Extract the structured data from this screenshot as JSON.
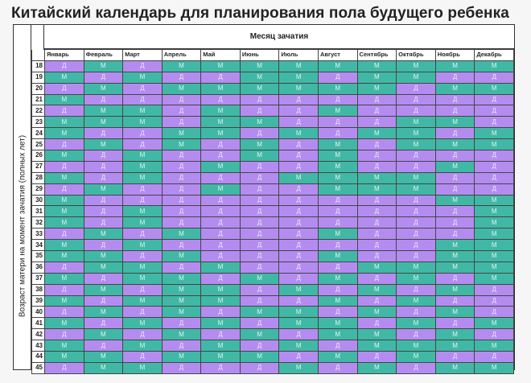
{
  "title": "Китайский календарь для планирования пола будущего ребенка",
  "header": "Месяц зачатия",
  "side_label": "Возраст матери на момент зачатия (полных лет)",
  "colors": {
    "M": "#41b8a6",
    "D": "#b48cf0"
  },
  "months": [
    "Январь",
    "Февраль",
    "Март",
    "Апрель",
    "Май",
    "Июнь",
    "Июль",
    "Август",
    "Сентябрь",
    "Октябрь",
    "Ноябрь",
    "Декабрь"
  ],
  "rows": [
    {
      "age": "18",
      "cells": [
        "Д",
        "М",
        "Д",
        "М",
        "М",
        "М",
        "М",
        "М",
        "М",
        "М",
        "М",
        "М"
      ]
    },
    {
      "age": "19",
      "cells": [
        "М",
        "Д",
        "М",
        "Д",
        "Д",
        "М",
        "М",
        "Д",
        "М",
        "М",
        "Д",
        "Д"
      ]
    },
    {
      "age": "20",
      "cells": [
        "Д",
        "М",
        "Д",
        "М",
        "М",
        "М",
        "М",
        "М",
        "М",
        "Д",
        "М",
        "М"
      ]
    },
    {
      "age": "21",
      "cells": [
        "М",
        "Д",
        "Д",
        "Д",
        "Д",
        "Д",
        "Д",
        "Д",
        "Д",
        "Д",
        "Д",
        "Д"
      ]
    },
    {
      "age": "22",
      "cells": [
        "Д",
        "М",
        "М",
        "Д",
        "М",
        "Д",
        "Д",
        "М",
        "Д",
        "Д",
        "Д",
        "Д"
      ]
    },
    {
      "age": "23",
      "cells": [
        "М",
        "М",
        "М",
        "Д",
        "М",
        "М",
        "Д",
        "Д",
        "Д",
        "М",
        "М",
        "Д"
      ]
    },
    {
      "age": "24",
      "cells": [
        "М",
        "Д",
        "Д",
        "М",
        "М",
        "Д",
        "М",
        "Д",
        "М",
        "М",
        "Д",
        "М"
      ]
    },
    {
      "age": "25",
      "cells": [
        "Д",
        "М",
        "Д",
        "М",
        "Д",
        "М",
        "Д",
        "М",
        "Д",
        "М",
        "М",
        "М"
      ]
    },
    {
      "age": "26",
      "cells": [
        "М",
        "Д",
        "М",
        "Д",
        "Д",
        "М",
        "Д",
        "М",
        "Д",
        "Д",
        "Д",
        "Д"
      ]
    },
    {
      "age": "27",
      "cells": [
        "Д",
        "Д",
        "М",
        "Д",
        "М",
        "Д",
        "Д",
        "М",
        "Д",
        "Д",
        "М",
        "Д"
      ]
    },
    {
      "age": "28",
      "cells": [
        "М",
        "Д",
        "М",
        "Д",
        "Д",
        "Д",
        "М",
        "М",
        "М",
        "М",
        "Д",
        "Д"
      ]
    },
    {
      "age": "29",
      "cells": [
        "Д",
        "М",
        "Д",
        "Д",
        "М",
        "Д",
        "Д",
        "М",
        "М",
        "М",
        "Д",
        "Д"
      ]
    },
    {
      "age": "30",
      "cells": [
        "М",
        "Д",
        "Д",
        "Д",
        "Д",
        "Д",
        "Д",
        "Д",
        "Д",
        "Д",
        "М",
        "М"
      ]
    },
    {
      "age": "31",
      "cells": [
        "М",
        "Д",
        "М",
        "Д",
        "Д",
        "Д",
        "Д",
        "Д",
        "Д",
        "Д",
        "Д",
        "М"
      ]
    },
    {
      "age": "32",
      "cells": [
        "М",
        "Д",
        "М",
        "Д",
        "Д",
        "Д",
        "Д",
        "Д",
        "Д",
        "Д",
        "Д",
        "М"
      ]
    },
    {
      "age": "33",
      "cells": [
        "Д",
        "М",
        "Д",
        "М",
        "Д",
        "Д",
        "Д",
        "М",
        "Д",
        "Д",
        "Д",
        "М"
      ]
    },
    {
      "age": "34",
      "cells": [
        "М",
        "Д",
        "М",
        "Д",
        "Д",
        "Д",
        "Д",
        "Д",
        "Д",
        "Д",
        "М",
        "М"
      ]
    },
    {
      "age": "35",
      "cells": [
        "М",
        "М",
        "Д",
        "М",
        "Д",
        "Д",
        "Д",
        "М",
        "Д",
        "Д",
        "М",
        "М"
      ]
    },
    {
      "age": "36",
      "cells": [
        "Д",
        "М",
        "М",
        "Д",
        "М",
        "Д",
        "Д",
        "Д",
        "М",
        "М",
        "М",
        "М"
      ]
    },
    {
      "age": "37",
      "cells": [
        "М",
        "Д",
        "М",
        "М",
        "Д",
        "М",
        "Д",
        "М",
        "Д",
        "М",
        "Д",
        "М"
      ]
    },
    {
      "age": "38",
      "cells": [
        "Д",
        "М",
        "Д",
        "М",
        "М",
        "Д",
        "М",
        "Д",
        "М",
        "Д",
        "М",
        "Д"
      ]
    },
    {
      "age": "39",
      "cells": [
        "М",
        "Д",
        "М",
        "М",
        "М",
        "Д",
        "Д",
        "М",
        "Д",
        "М",
        "Д",
        "Д"
      ]
    },
    {
      "age": "40",
      "cells": [
        "Д",
        "М",
        "Д",
        "М",
        "Д",
        "М",
        "М",
        "Д",
        "М",
        "Д",
        "М",
        "Д"
      ]
    },
    {
      "age": "41",
      "cells": [
        "М",
        "Д",
        "М",
        "Д",
        "М",
        "Д",
        "М",
        "М",
        "Д",
        "М",
        "Д",
        "М"
      ]
    },
    {
      "age": "42",
      "cells": [
        "Д",
        "М",
        "Д",
        "М",
        "Д",
        "М",
        "Д",
        "М",
        "М",
        "Д",
        "М",
        "Д"
      ]
    },
    {
      "age": "43",
      "cells": [
        "М",
        "Д",
        "М",
        "Д",
        "М",
        "Д",
        "М",
        "Д",
        "М",
        "М",
        "М",
        "М"
      ]
    },
    {
      "age": "44",
      "cells": [
        "М",
        "М",
        "Д",
        "М",
        "М",
        "М",
        "Д",
        "М",
        "Д",
        "М",
        "Д",
        "Д"
      ]
    },
    {
      "age": "45",
      "cells": [
        "Д",
        "М",
        "М",
        "Д",
        "Д",
        "Д",
        "М",
        "Д",
        "М",
        "Д",
        "М",
        "М"
      ]
    }
  ]
}
